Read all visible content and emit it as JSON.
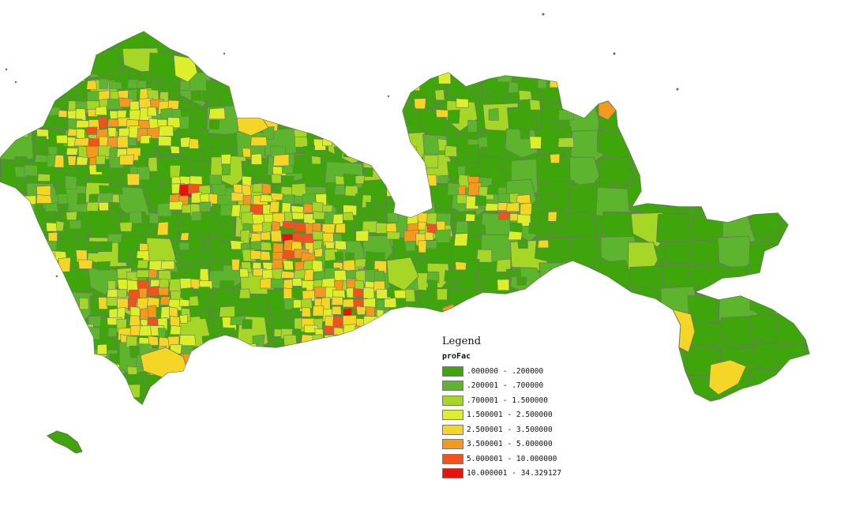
{
  "legend": {
    "title": "Legend",
    "field": "proFac",
    "classes": [
      {
        "label": ".000000 - .200000",
        "color": "#3ea60a"
      },
      {
        "label": ".200001 - .700000",
        "color": "#5cb52d"
      },
      {
        "label": ".700001 - 1.500000",
        "color": "#a6d626"
      },
      {
        "label": "1.500001 - 2.500000",
        "color": "#dcef2a"
      },
      {
        "label": "2.500001 - 3.500000",
        "color": "#f5d626"
      },
      {
        "label": "3.500001 - 5.000000",
        "color": "#f2991e"
      },
      {
        "label": "5.000001 - 10.000000",
        "color": "#f2521c"
      },
      {
        "label": "10.000001 - 34.329127",
        "color": "#e8140c"
      }
    ]
  },
  "map": {
    "boundary_color": "#6a7a5f",
    "background": "#ffffff"
  }
}
